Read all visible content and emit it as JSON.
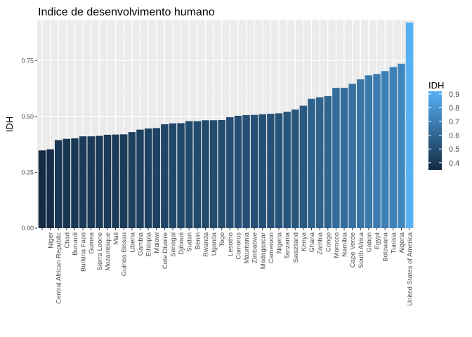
{
  "chart_data": {
    "type": "bar",
    "title": "Indice de desenvolvimento humano",
    "xlabel": "",
    "ylabel": "IDH",
    "ylim": [
      0,
      0.93
    ],
    "yticks": [
      0.0,
      0.25,
      0.5,
      0.75
    ],
    "ytick_labels": [
      "0.00",
      "0.25",
      "0.50",
      "0.75"
    ],
    "grid": true,
    "legend": {
      "title": "IDH",
      "placement": "right",
      "ticks": [
        0.9,
        0.8,
        0.7,
        0.6,
        0.5,
        0.4
      ],
      "tick_labels": [
        "0.9",
        "0.8",
        "0.7",
        "0.6",
        "0.5",
        "0.4"
      ],
      "range": [
        0.348,
        0.92
      ],
      "low_color": "#132B43",
      "high_color": "#56B1F7"
    },
    "categories": [
      "",
      "Niger",
      "Central African Republic",
      "Chad",
      "Burundi",
      "Burkina Faso",
      "Guinea",
      "Sierra Leone",
      "Mozambique",
      "Mali",
      "Guinea-Bissau",
      "Liberia",
      "Gambia",
      "Ethiopia",
      "Malawi",
      "Cote Divoire",
      "Senegal",
      "Djibouti",
      "Sudan",
      "Benin",
      "Rwanda",
      "Uganda",
      "Togo",
      "Lesotho",
      "Comoros",
      "Mauritania",
      "Zimbabwe",
      "Madagascar",
      "Cameroon",
      "Nigeria",
      "Tanzania",
      "Swaziland",
      "Kenya",
      "Ghana",
      "Zambia",
      "Congo",
      "Morocco",
      "Namibia",
      "Cape Verde",
      "South Africa",
      "Gabon",
      "Egypt",
      "Botswana",
      "Tunisia",
      "Algeria",
      "United States of America"
    ],
    "values": [
      0.348,
      0.353,
      0.394,
      0.4,
      0.402,
      0.411,
      0.411,
      0.413,
      0.418,
      0.419,
      0.42,
      0.43,
      0.441,
      0.446,
      0.448,
      0.465,
      0.469,
      0.47,
      0.479,
      0.479,
      0.483,
      0.483,
      0.484,
      0.497,
      0.503,
      0.506,
      0.507,
      0.51,
      0.512,
      0.514,
      0.521,
      0.531,
      0.548,
      0.579,
      0.586,
      0.591,
      0.628,
      0.628,
      0.646,
      0.666,
      0.684,
      0.69,
      0.703,
      0.721,
      0.736,
      0.92
    ]
  }
}
